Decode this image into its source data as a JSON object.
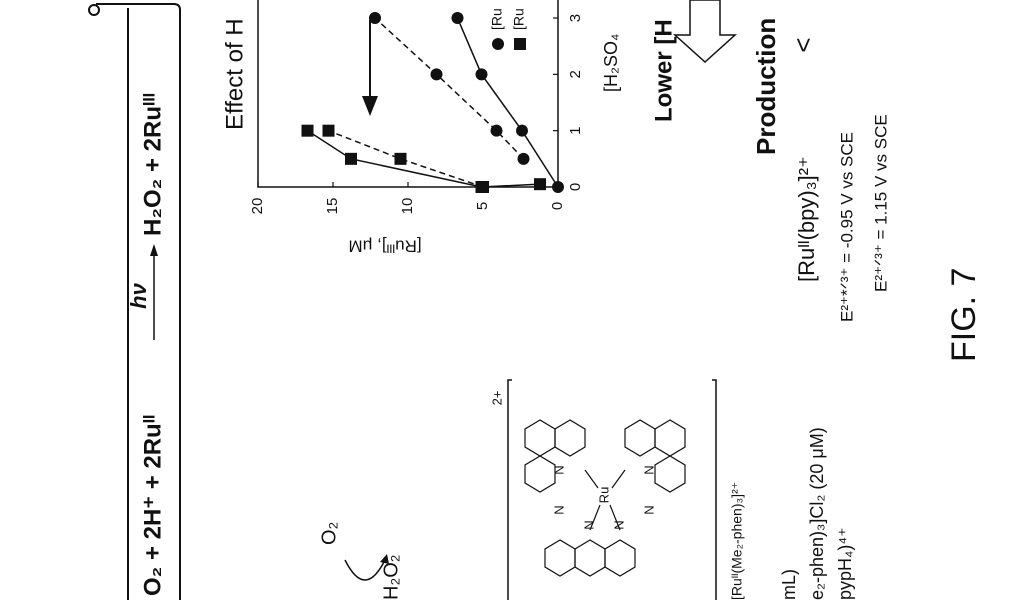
{
  "banner": {
    "left": "O₂ + 2H⁺ + 2Ruᴵᴵ",
    "light": "hν",
    "right": "H₂O₂ + 2Ruᴵᴵᴵ"
  },
  "scheme": {
    "reactant": "O₂",
    "product": "H₂O₂"
  },
  "complex": {
    "charge": "2+",
    "atoms": [
      "N",
      "N",
      "N",
      "N",
      "N",
      "N",
      "Ru"
    ],
    "name": "[Ruᴵᴵ(Me₂-phen)₃]²⁺"
  },
  "conditions": [
    "mL)",
    "e₂-phen)₃]Cl₂ (20 μM)",
    "pypH₄)⁴⁺"
  ],
  "plot": {
    "title": "Effect of H",
    "ylabel": "[Ruᴵᴵᴵ], μM",
    "xlabel": "[H₂SO₄",
    "legend": [
      {
        "marker": "circle",
        "label": "[Ru"
      },
      {
        "marker": "square",
        "label": "[Ru"
      }
    ],
    "xlim": [
      0,
      3.32
    ],
    "ylim": [
      0,
      20
    ],
    "xticks": [
      0,
      1,
      2,
      3
    ],
    "yticks": [
      0,
      5,
      10,
      15,
      20
    ],
    "series": [
      {
        "marker": "circle",
        "dash": false,
        "x": [
          0,
          1,
          2,
          3
        ],
        "values": [
          0,
          2.4,
          5.1,
          6.7
        ]
      },
      {
        "marker": "circle",
        "dash": true,
        "x": [
          0.5,
          1,
          2,
          3
        ],
        "values": [
          2.3,
          4.1,
          8.1,
          12.2
        ]
      },
      {
        "marker": "square",
        "dash": false,
        "x": [
          0.05,
          0,
          0.5,
          1
        ],
        "values": [
          1.2,
          5.1,
          13.8,
          16.7
        ]
      },
      {
        "marker": "square",
        "dash": true,
        "x": [
          0,
          0.5,
          1
        ],
        "values": [
          5,
          10.5,
          15.3
        ]
      }
    ]
  },
  "lower": "Lower [H",
  "production": "Production",
  "compare": "<",
  "reference": {
    "name": "[Ruᴵᴵ(bpy)₃]²⁺",
    "potentials": [
      "E²⁺*ᐟ³⁺ = -0.95 V vs SCE",
      "E²⁺ᐟ³⁺ = 1.15 V vs SCE"
    ]
  },
  "figure": "FIG. 7"
}
